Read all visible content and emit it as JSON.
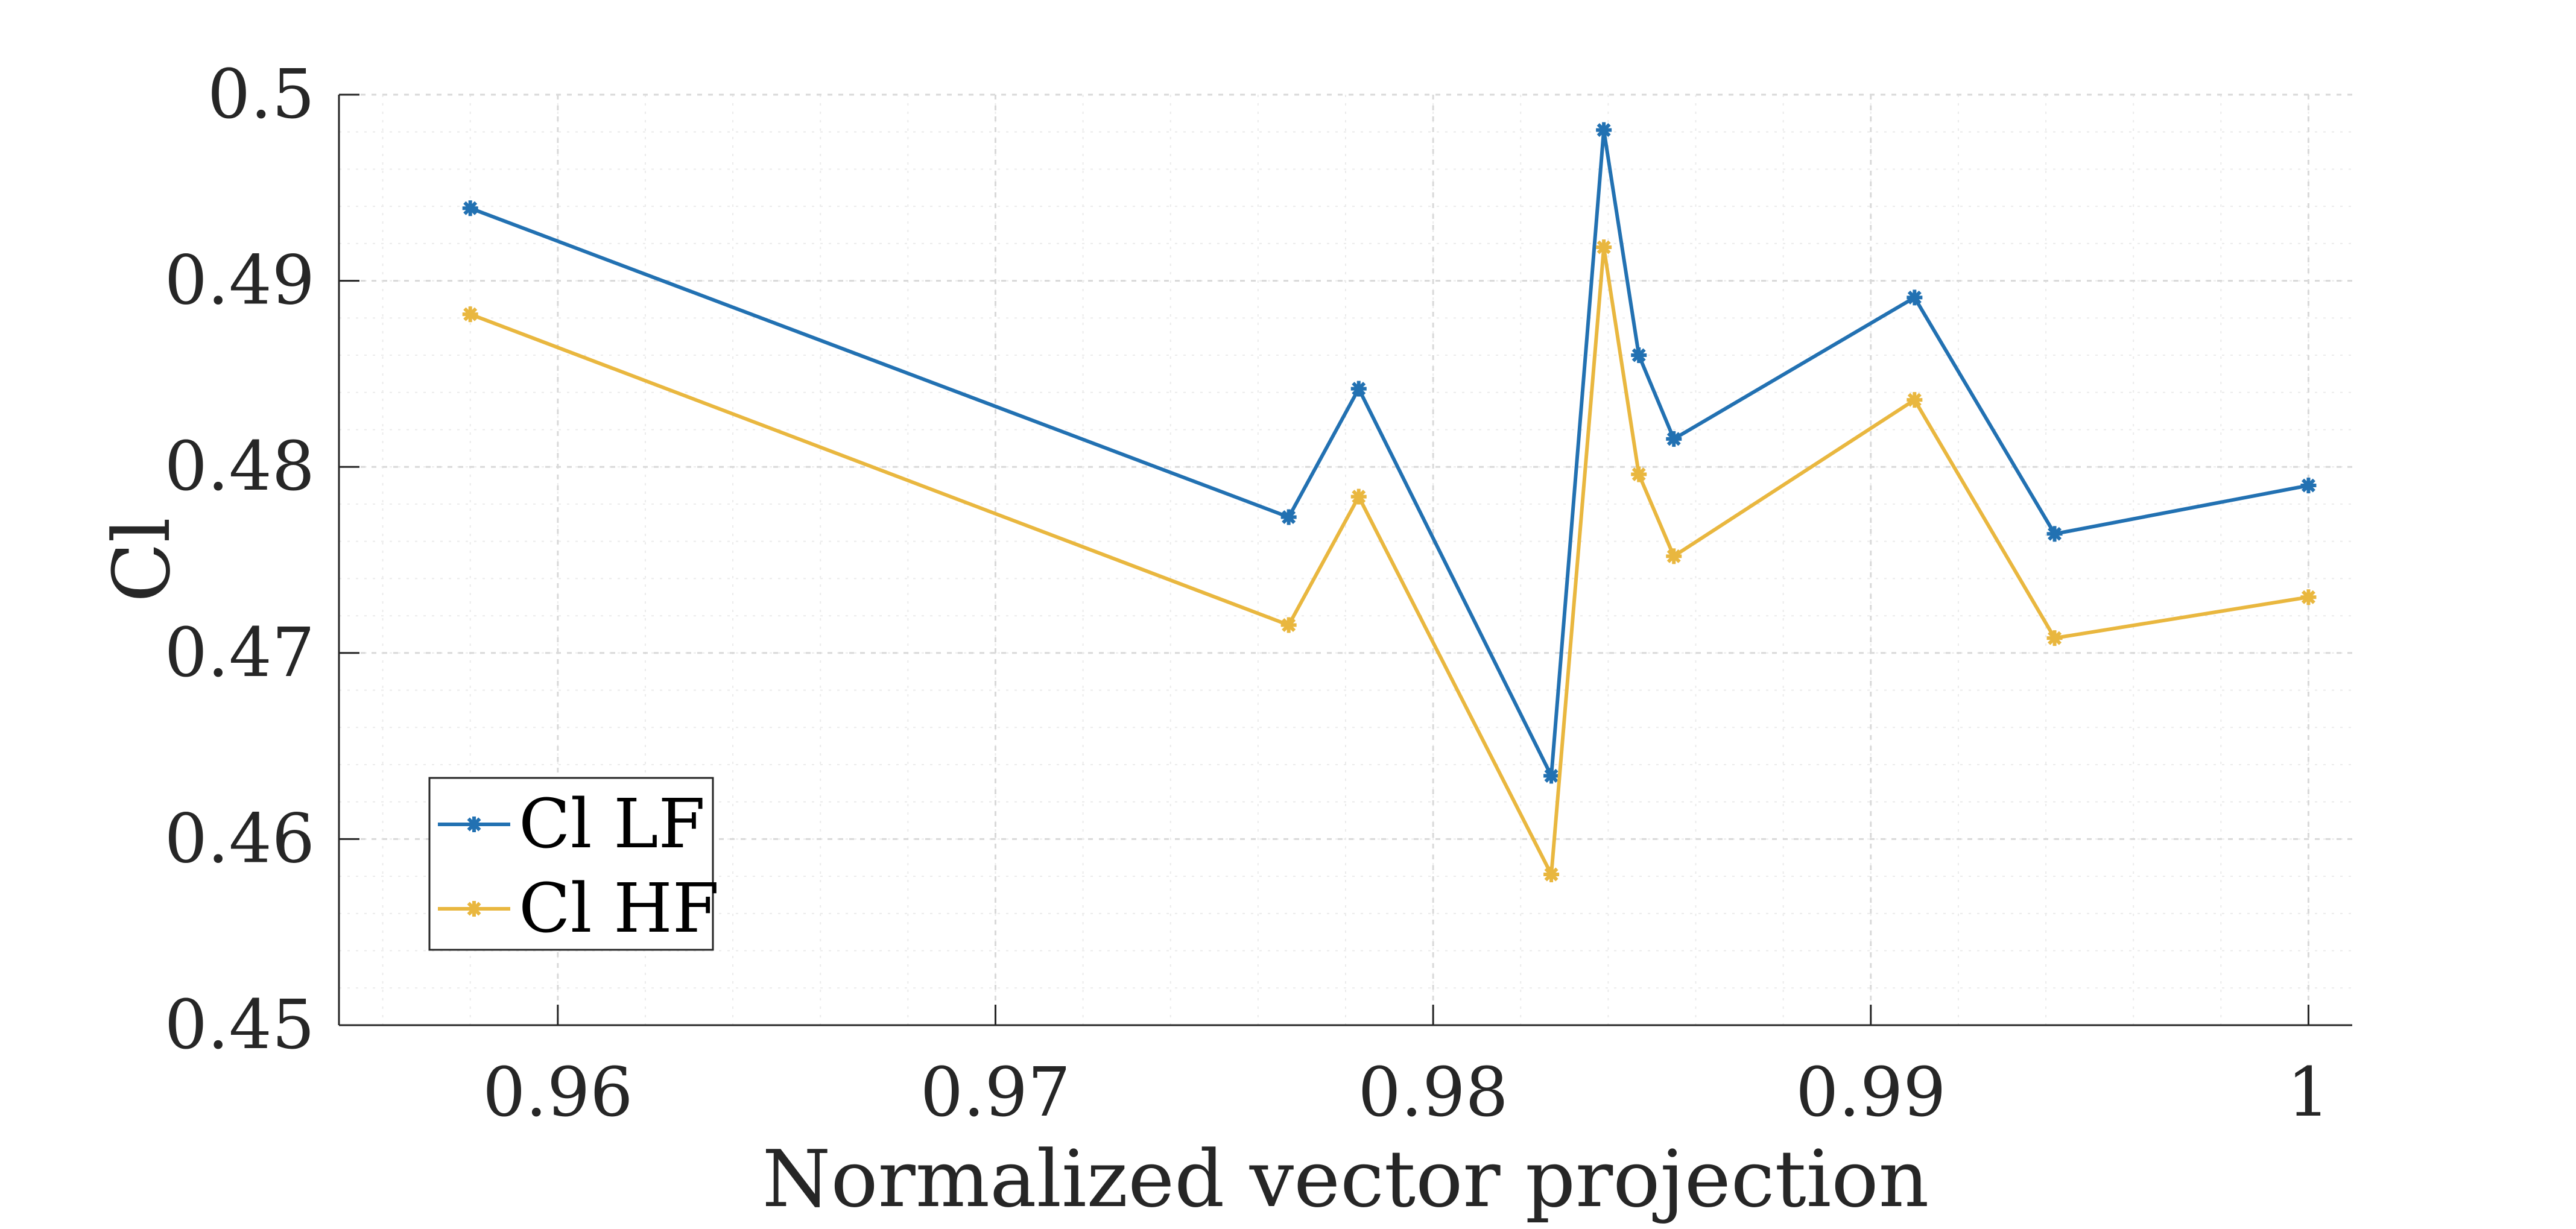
{
  "chart_data": {
    "type": "line",
    "title": "",
    "xlabel": "Normalized vector projection",
    "ylabel": "Cl",
    "xlim": [
      0.955,
      1.001
    ],
    "ylim": [
      0.45,
      0.5
    ],
    "xticks": [
      0.96,
      0.97,
      0.98,
      0.99,
      1
    ],
    "xtick_labels": [
      "0.96",
      "0.97",
      "0.98",
      "0.99",
      "1"
    ],
    "yticks": [
      0.45,
      0.46,
      0.47,
      0.48,
      0.49,
      0.5
    ],
    "ytick_labels": [
      "0.45",
      "0.46",
      "0.47",
      "0.48",
      "0.49",
      "0.5"
    ],
    "grid": true,
    "minor_grid": true,
    "legend_position": "bottom-left",
    "x": [
      0.958,
      0.9767,
      0.9783,
      0.9827,
      0.9839,
      0.9847,
      0.9855,
      0.991,
      0.9942,
      1.0
    ],
    "series": [
      {
        "name": "Cl LF",
        "color": "#2271b2",
        "marker": "asterisk",
        "values": [
          0.4939,
          0.4773,
          0.4842,
          0.4634,
          0.4981,
          0.486,
          0.4815,
          0.4891,
          0.4764,
          0.479
        ]
      },
      {
        "name": "Cl HF",
        "color": "#e9b73f",
        "marker": "asterisk",
        "values": [
          0.4882,
          0.4715,
          0.4784,
          0.4581,
          0.4918,
          0.4796,
          0.4752,
          0.4836,
          0.4708,
          0.473
        ]
      }
    ]
  }
}
